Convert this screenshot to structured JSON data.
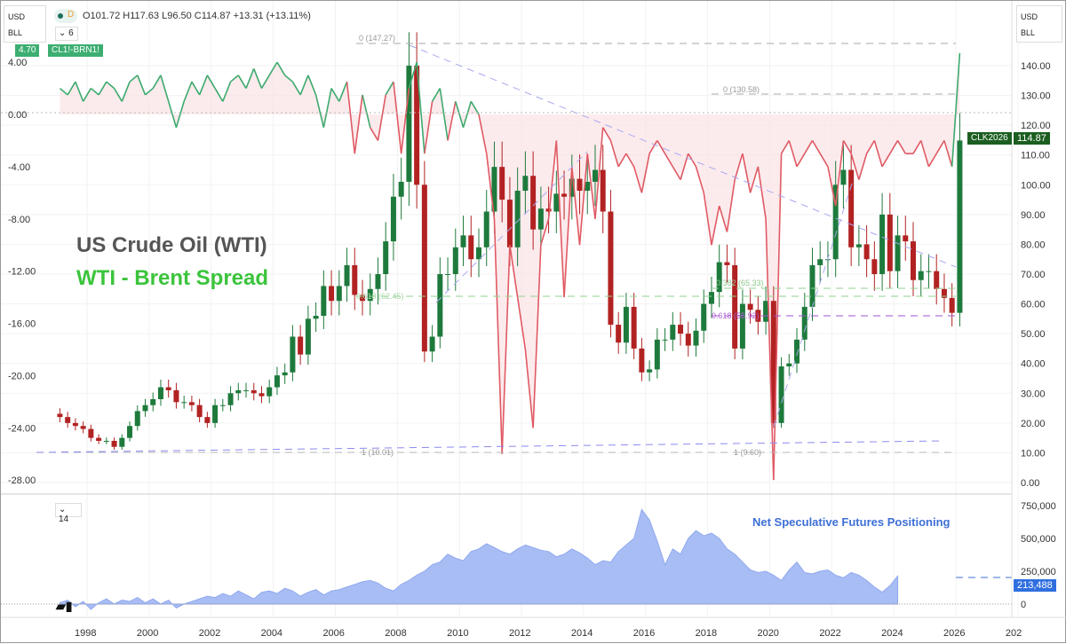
{
  "header": {
    "currency": "USD",
    "unit": "BLL",
    "ohlc": "O101.72 H117.63 L96.50 C114.87 +13.31 (+13.11%)",
    "interval": "D",
    "indicator_count": "6",
    "spread_value": "4.70",
    "spread_symbol": "CL1!-BRN1!"
  },
  "right_header": {
    "currency": "USD",
    "unit": "BLL"
  },
  "price_badge": {
    "symbol": "CLK2026",
    "value": "114.87"
  },
  "lower_pane": {
    "indicator_count": "14",
    "last_value": "213,488",
    "logo": "TV"
  },
  "annotations": {
    "wti": "US Crude Oil (WTI)",
    "spread": "WTI - Brent Spread",
    "positioning": "Net Speculative Futures Positioning"
  },
  "fib_labels": [
    "0 (147.27)",
    "0 (130.58)",
    "0.382 (65.33)",
    "0.618 (62.45)",
    "0.618 (55.92)",
    "1 (10.01)",
    "1 (9.60)"
  ],
  "colors": {
    "up": "#1e7a3c",
    "down": "#b22222",
    "spread_pos": "#3daa6e",
    "spread_neg": "#e05a64",
    "positioning": "#a9bdf5",
    "wti_text": "#555555",
    "spread_text": "#3cc43c",
    "pos_text": "#3d6fd6"
  },
  "chart_data": [
    {
      "type": "candlestick",
      "name": "US Crude Oil (WTI)",
      "period": "quarterly",
      "x_start": 1997,
      "closes": [
        22,
        20,
        19,
        18,
        15,
        14,
        14,
        12,
        15,
        19,
        24,
        26,
        28,
        32,
        31,
        27,
        27,
        26,
        22,
        20,
        26,
        26,
        30,
        31,
        31,
        30,
        29,
        32,
        36,
        37,
        49,
        43,
        55,
        56,
        66,
        61,
        66,
        73,
        63,
        61,
        65,
        70,
        81,
        96,
        101,
        140,
        100,
        44,
        49,
        70,
        70,
        79,
        83,
        75,
        79,
        91,
        106,
        95,
        79,
        98,
        103,
        85,
        92,
        91,
        97,
        96,
        102,
        98,
        101,
        105,
        91,
        53,
        47,
        59,
        45,
        37,
        38,
        48,
        48,
        53,
        50,
        46,
        51,
        60,
        64,
        74,
        73,
        45,
        60,
        58,
        54,
        61,
        20,
        39,
        40,
        48,
        59,
        73,
        75,
        75,
        100,
        105,
        79,
        80,
        75,
        70,
        90,
        71,
        83,
        81,
        68,
        71,
        71,
        65,
        62,
        57,
        114.87
      ],
      "y_ticks": [
        0,
        10,
        20,
        30,
        40,
        50,
        60,
        70,
        80,
        90,
        100,
        110,
        120,
        130,
        140
      ],
      "ylim": [
        -5,
        150
      ]
    },
    {
      "type": "line",
      "name": "CL1!-BRN1!",
      "period": "quarterly",
      "x_start": 1997,
      "values": [
        2,
        1.5,
        2.5,
        1,
        2,
        1.5,
        2.5,
        2,
        1,
        2.5,
        3,
        1.5,
        2,
        3,
        1,
        -1,
        1,
        2.5,
        1.5,
        3,
        2,
        1,
        2.5,
        3,
        2,
        3.5,
        2,
        3,
        4,
        3,
        2.5,
        1.5,
        3,
        1.5,
        -1,
        2,
        1,
        2.5,
        -3,
        1.5,
        -1,
        -2,
        1.5,
        2.5,
        -3,
        2,
        4,
        -3,
        1,
        2,
        -2,
        1,
        -1,
        1,
        0,
        -3,
        -8,
        -26,
        -10,
        -14,
        -18,
        -24,
        -10,
        -8,
        -2,
        -14,
        -4,
        -10,
        -3,
        -8,
        -1,
        -2,
        -4,
        -3,
        -4,
        -6,
        -3,
        -2,
        -3,
        -4,
        -5,
        -3,
        -4,
        -6,
        -10,
        -7,
        -9,
        -5,
        -3,
        -6,
        -4,
        -8,
        -28,
        -3,
        -2,
        -4,
        -3,
        -2,
        -3,
        -4,
        -7,
        -2,
        -3,
        -5,
        -3,
        -2,
        -4,
        -3,
        -2,
        -3,
        -3,
        -2,
        -4,
        -3,
        -2,
        -4,
        4.7
      ],
      "y_ticks": [
        4,
        0,
        -4,
        -8,
        -12,
        -16,
        -20,
        -24,
        -28
      ]
    },
    {
      "type": "area",
      "name": "Net Speculative Futures Positioning",
      "period": "quarterly",
      "x_start": 1997,
      "values": [
        10,
        30,
        -20,
        20,
        -40,
        10,
        40,
        0,
        30,
        20,
        50,
        10,
        40,
        0,
        30,
        -30,
        0,
        20,
        40,
        60,
        50,
        80,
        60,
        100,
        70,
        40,
        90,
        100,
        80,
        120,
        100,
        60,
        90,
        110,
        70,
        100,
        110,
        130,
        150,
        170,
        180,
        160,
        120,
        100,
        150,
        180,
        220,
        250,
        300,
        320,
        380,
        350,
        330,
        400,
        420,
        460,
        430,
        400,
        380,
        420,
        450,
        430,
        410,
        400,
        360,
        380,
        420,
        390,
        350,
        300,
        330,
        320,
        400,
        450,
        500,
        720,
        640,
        480,
        300,
        420,
        380,
        500,
        560,
        520,
        540,
        500,
        420,
        380,
        320,
        260,
        240,
        250,
        220,
        180,
        260,
        320,
        240,
        230,
        250,
        260,
        220,
        200,
        240,
        220,
        180,
        130,
        90,
        140,
        213.488
      ],
      "unit": "thousand contracts",
      "y_ticks": [
        "0",
        "250,000",
        "500,000",
        "750,000"
      ]
    }
  ],
  "x_axis": {
    "ticks": [
      "1998",
      "2000",
      "2002",
      "2004",
      "2006",
      "2008",
      "2010",
      "2012",
      "2014",
      "2016",
      "2018",
      "2020",
      "2022",
      "2024",
      "2026",
      "202"
    ]
  }
}
